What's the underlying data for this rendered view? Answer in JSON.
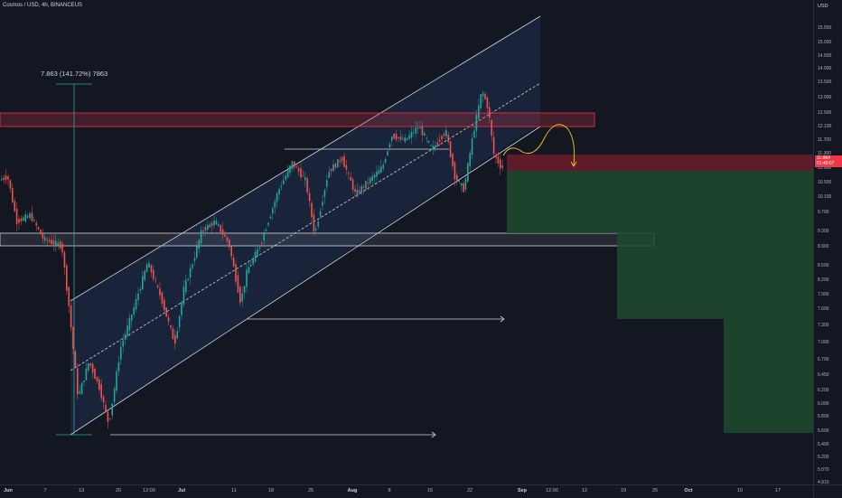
{
  "chart": {
    "title": "Cosmos / USD, 4h, BINANCEUS",
    "measure_label": "7.863 (141.72%) 7863"
  },
  "price_axis": {
    "currency": "USD",
    "labels": [
      "15.550",
      "15.000",
      "14.500",
      "14.000",
      "13.500",
      "13.000",
      "12.500",
      "12.100",
      "11.700",
      "11.300",
      "10.900",
      "10.500",
      "10.100",
      "9.700",
      "9.300",
      "8.900",
      "8.500",
      "8.200",
      "7.900",
      "7.600",
      "7.300",
      "7.000",
      "6.700",
      "6.450",
      "6.200",
      "6.000",
      "5.800",
      "5.600",
      "5.400",
      "5.200",
      "5.070",
      "4.910"
    ],
    "current_price": "11.064",
    "countdown": "01:40:07"
  },
  "time_axis": {
    "labels": [
      "Jun",
      "7",
      "13",
      "20",
      "12:00",
      "Jul",
      "11",
      "18",
      "25",
      "Aug",
      "8",
      "15",
      "22",
      "Sep",
      "12:00",
      "12",
      "19",
      "25",
      "Oct",
      "10",
      "17"
    ]
  },
  "colors": {
    "background": "#131722",
    "channel_fill": "#1e2b4a",
    "resistance_zone": "#f23645",
    "support_zone": "#b2b5be",
    "profit_zone": "#1e4a2e",
    "loss_zone": "#7a1e2e",
    "projection_path": "#f5c518",
    "candle_up": "#26a69a",
    "candle_down": "#ef5350"
  }
}
